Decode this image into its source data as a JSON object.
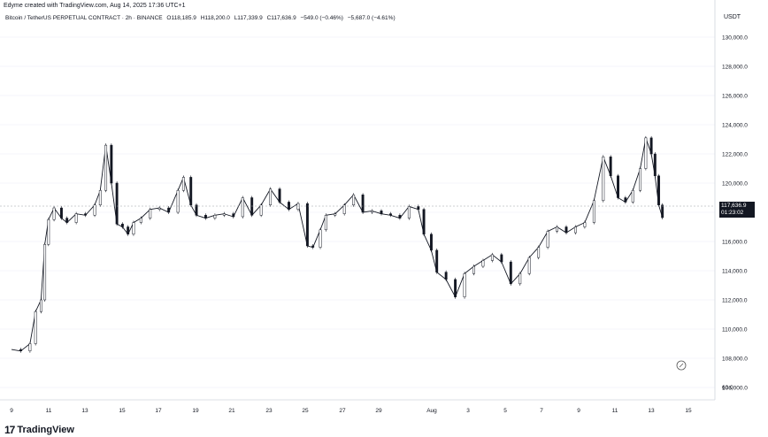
{
  "header": {
    "caption": "Edyme created with TradingView.com, Aug 14, 2025 17:36 UTC+1",
    "symbol": "Bitcoin / TetherUS PERPETUAL CONTRACT · 2h · BINANCE",
    "open": "O118,185.9",
    "high": "H118,200.0",
    "low": "L117,339.9",
    "close": "C117,636.9",
    "change": "−549.0 (−0.46%)",
    "volume_change": "−5,687.0 (−4.61%)",
    "currency": "USDT"
  },
  "price_tag": {
    "price": "117,636.9",
    "countdown": "01:23:02"
  },
  "branding": {
    "logo": "17",
    "name": "TradingView"
  },
  "colors": {
    "up": "#ffffff",
    "down": "#131722",
    "grid": "#f0f3fa",
    "axis_text": "#131722"
  },
  "chart_data": {
    "type": "candlestick",
    "ylim": [
      105000,
      131000
    ],
    "y_ticks": [
      "130,000.0",
      "128,000.0",
      "126,000.0",
      "124,000.0",
      "122,000.0",
      "120,000.0",
      "118,000.0",
      "116,000.0",
      "114,000.0",
      "112,000.0",
      "110,000.0",
      "108,000.0",
      "106,000.0"
    ],
    "y_tick_values": [
      130000,
      128000,
      126000,
      124000,
      122000,
      120000,
      118000,
      116000,
      114000,
      112000,
      110000,
      108000,
      106000
    ],
    "extra_tick": "60.0",
    "x_ticks": [
      "9",
      "11",
      "13",
      "15",
      "17",
      "19",
      "21",
      "23",
      "25",
      "27",
      "29",
      "Aug",
      "3",
      "5",
      "7",
      "9",
      "11",
      "13",
      "15"
    ],
    "series": [
      {
        "day": 9.0,
        "close": 108600
      },
      {
        "day": 9.5,
        "close": 108500
      },
      {
        "day": 10.0,
        "close": 109000
      },
      {
        "day": 10.3,
        "close": 111200
      },
      {
        "day": 10.6,
        "close": 112000
      },
      {
        "day": 10.8,
        "close": 115800
      },
      {
        "day": 11.0,
        "close": 117500
      },
      {
        "day": 11.3,
        "close": 118300
      },
      {
        "day": 11.7,
        "close": 117600
      },
      {
        "day": 12.0,
        "close": 117300
      },
      {
        "day": 12.5,
        "close": 117900
      },
      {
        "day": 13.0,
        "close": 117800
      },
      {
        "day": 13.5,
        "close": 118500
      },
      {
        "day": 13.8,
        "close": 119500
      },
      {
        "day": 14.1,
        "close": 122600
      },
      {
        "day": 14.4,
        "close": 120000
      },
      {
        "day": 14.7,
        "close": 117200
      },
      {
        "day": 15.0,
        "close": 117000
      },
      {
        "day": 15.3,
        "close": 116500
      },
      {
        "day": 15.6,
        "close": 117300
      },
      {
        "day": 16.0,
        "close": 117600
      },
      {
        "day": 16.5,
        "close": 118200
      },
      {
        "day": 17.0,
        "close": 118300
      },
      {
        "day": 17.5,
        "close": 118000
      },
      {
        "day": 18.0,
        "close": 119500
      },
      {
        "day": 18.3,
        "close": 120400
      },
      {
        "day": 18.7,
        "close": 118500
      },
      {
        "day": 19.0,
        "close": 117800
      },
      {
        "day": 19.5,
        "close": 117600
      },
      {
        "day": 20.0,
        "close": 117800
      },
      {
        "day": 20.5,
        "close": 117900
      },
      {
        "day": 21.0,
        "close": 117700
      },
      {
        "day": 21.5,
        "close": 119000
      },
      {
        "day": 22.0,
        "close": 117800
      },
      {
        "day": 22.5,
        "close": 118500
      },
      {
        "day": 23.0,
        "close": 119600
      },
      {
        "day": 23.5,
        "close": 118700
      },
      {
        "day": 24.0,
        "close": 118200
      },
      {
        "day": 24.5,
        "close": 118600
      },
      {
        "day": 25.0,
        "close": 115700
      },
      {
        "day": 25.3,
        "close": 115600
      },
      {
        "day": 25.7,
        "close": 116800
      },
      {
        "day": 26.0,
        "close": 117800
      },
      {
        "day": 26.5,
        "close": 117900
      },
      {
        "day": 27.0,
        "close": 118500
      },
      {
        "day": 27.5,
        "close": 119200
      },
      {
        "day": 28.0,
        "close": 118000
      },
      {
        "day": 28.5,
        "close": 118100
      },
      {
        "day": 29.0,
        "close": 117900
      },
      {
        "day": 29.5,
        "close": 117800
      },
      {
        "day": 30.0,
        "close": 117600
      },
      {
        "day": 30.5,
        "close": 118400
      },
      {
        "day": 31.0,
        "close": 118200
      },
      {
        "day": 31.3,
        "close": 116500
      },
      {
        "day": 31.7,
        "close": 115400
      },
      {
        "day": 32.0,
        "close": 113900
      },
      {
        "day": 32.5,
        "close": 113400
      },
      {
        "day": 33.0,
        "close": 112200
      },
      {
        "day": 33.5,
        "close": 113800
      },
      {
        "day": 34.0,
        "close": 114300
      },
      {
        "day": 34.5,
        "close": 114700
      },
      {
        "day": 35.0,
        "close": 115100
      },
      {
        "day": 35.5,
        "close": 114600
      },
      {
        "day": 36.0,
        "close": 113100
      },
      {
        "day": 36.5,
        "close": 113800
      },
      {
        "day": 37.0,
        "close": 114900
      },
      {
        "day": 37.5,
        "close": 115600
      },
      {
        "day": 38.0,
        "close": 116700
      },
      {
        "day": 38.5,
        "close": 117000
      },
      {
        "day": 39.0,
        "close": 116600
      },
      {
        "day": 39.5,
        "close": 117000
      },
      {
        "day": 40.0,
        "close": 117300
      },
      {
        "day": 40.5,
        "close": 118800
      },
      {
        "day": 41.0,
        "close": 121800
      },
      {
        "day": 41.4,
        "close": 120500
      },
      {
        "day": 41.8,
        "close": 119000
      },
      {
        "day": 42.2,
        "close": 118700
      },
      {
        "day": 42.6,
        "close": 119500
      },
      {
        "day": 43.0,
        "close": 121000
      },
      {
        "day": 43.3,
        "close": 123100
      },
      {
        "day": 43.6,
        "close": 122000
      },
      {
        "day": 43.8,
        "close": 120500
      },
      {
        "day": 44.0,
        "close": 118500
      },
      {
        "day": 44.2,
        "close": 117637
      }
    ]
  }
}
